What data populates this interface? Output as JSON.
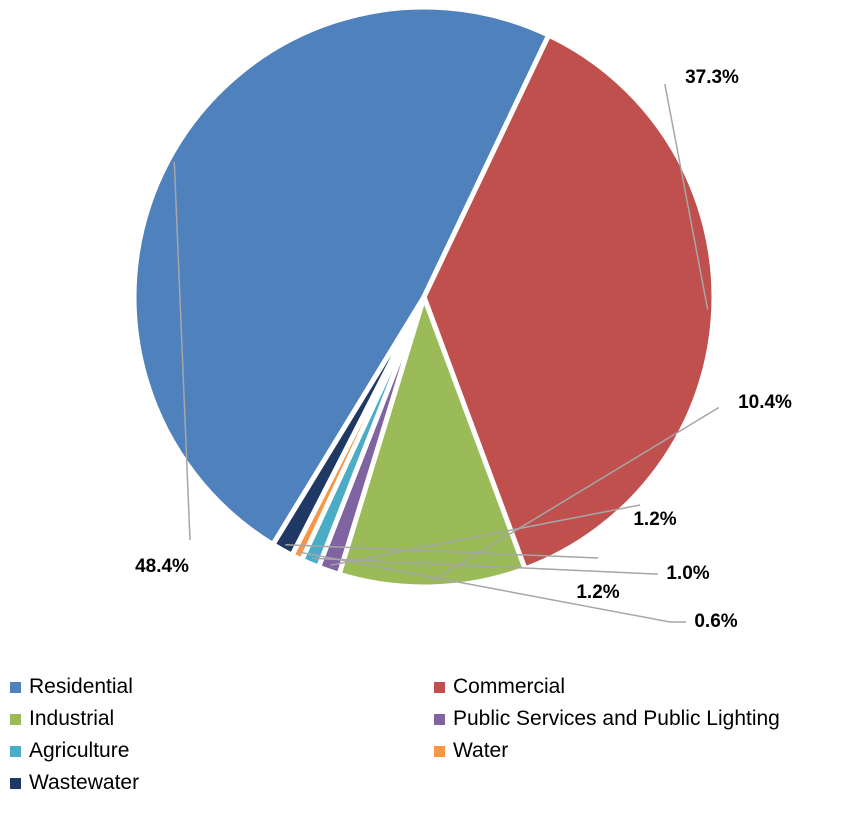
{
  "chart_data": {
    "type": "pie",
    "categories": [
      "Residential",
      "Commercial",
      "Industrial",
      "Public Services and Public Lighting",
      "Agriculture",
      "Water",
      "Wastewater"
    ],
    "values": [
      48.4,
      37.3,
      10.4,
      1.2,
      1.0,
      0.6,
      1.2
    ],
    "labels": [
      "48.4%",
      "37.3%",
      "10.4%",
      "1.2%",
      "1.0%",
      "0.6%",
      "1.2%"
    ],
    "colors": [
      "#4f81bd",
      "#c0504d",
      "#9bbb59",
      "#8064a2",
      "#4bacc6",
      "#f79646",
      "#1f3864"
    ],
    "legend_position": "bottom",
    "start_angle_deg": 211.4,
    "direction": "clockwise"
  }
}
